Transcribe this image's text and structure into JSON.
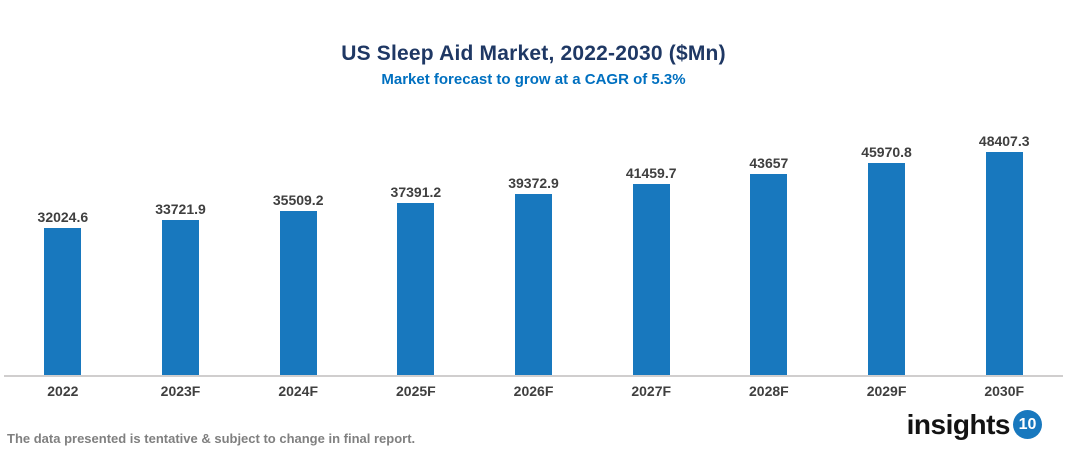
{
  "title": "US Sleep Aid Market, 2022-2030 ($Mn)",
  "subtitle": "Market forecast to grow at a CAGR of 5.3%",
  "footer": {
    "disclaimer": "The data presented is tentative & subject to change in final report."
  },
  "logo": {
    "text": "insights",
    "badge": "10",
    "badge_color": "#1878BE",
    "text_color": "#131313"
  },
  "colors": {
    "bar": "#1878BE",
    "title": "#1F3864",
    "subtitle": "#0070C0",
    "axis_line": "#D0CECE",
    "labels": "#3F3F3F",
    "footer_text": "#808080",
    "background": "#FFFFFF"
  },
  "chart_data": {
    "type": "bar",
    "title": "US Sleep Aid Market, 2022-2030 ($Mn)",
    "subtitle": "Market forecast to grow at a CAGR of 5.3%",
    "categories": [
      "2022",
      "2023F",
      "2024F",
      "2025F",
      "2026F",
      "2027F",
      "2028F",
      "2029F",
      "2030F"
    ],
    "values": [
      32024.6,
      33721.9,
      35509.2,
      37391.2,
      39372.9,
      41459.7,
      43657,
      45970.8,
      48407.3
    ],
    "value_labels": [
      "32024.6",
      "33721.9",
      "35509.2",
      "37391.2",
      "39372.9",
      "41459.7",
      "43657",
      "45970.8",
      "48407.3"
    ],
    "xlabel": "",
    "ylabel": "",
    "ylim": [
      0,
      48407.3
    ],
    "grid": false,
    "legend": false,
    "data_labels": true,
    "bar_color": "#1878BE"
  }
}
